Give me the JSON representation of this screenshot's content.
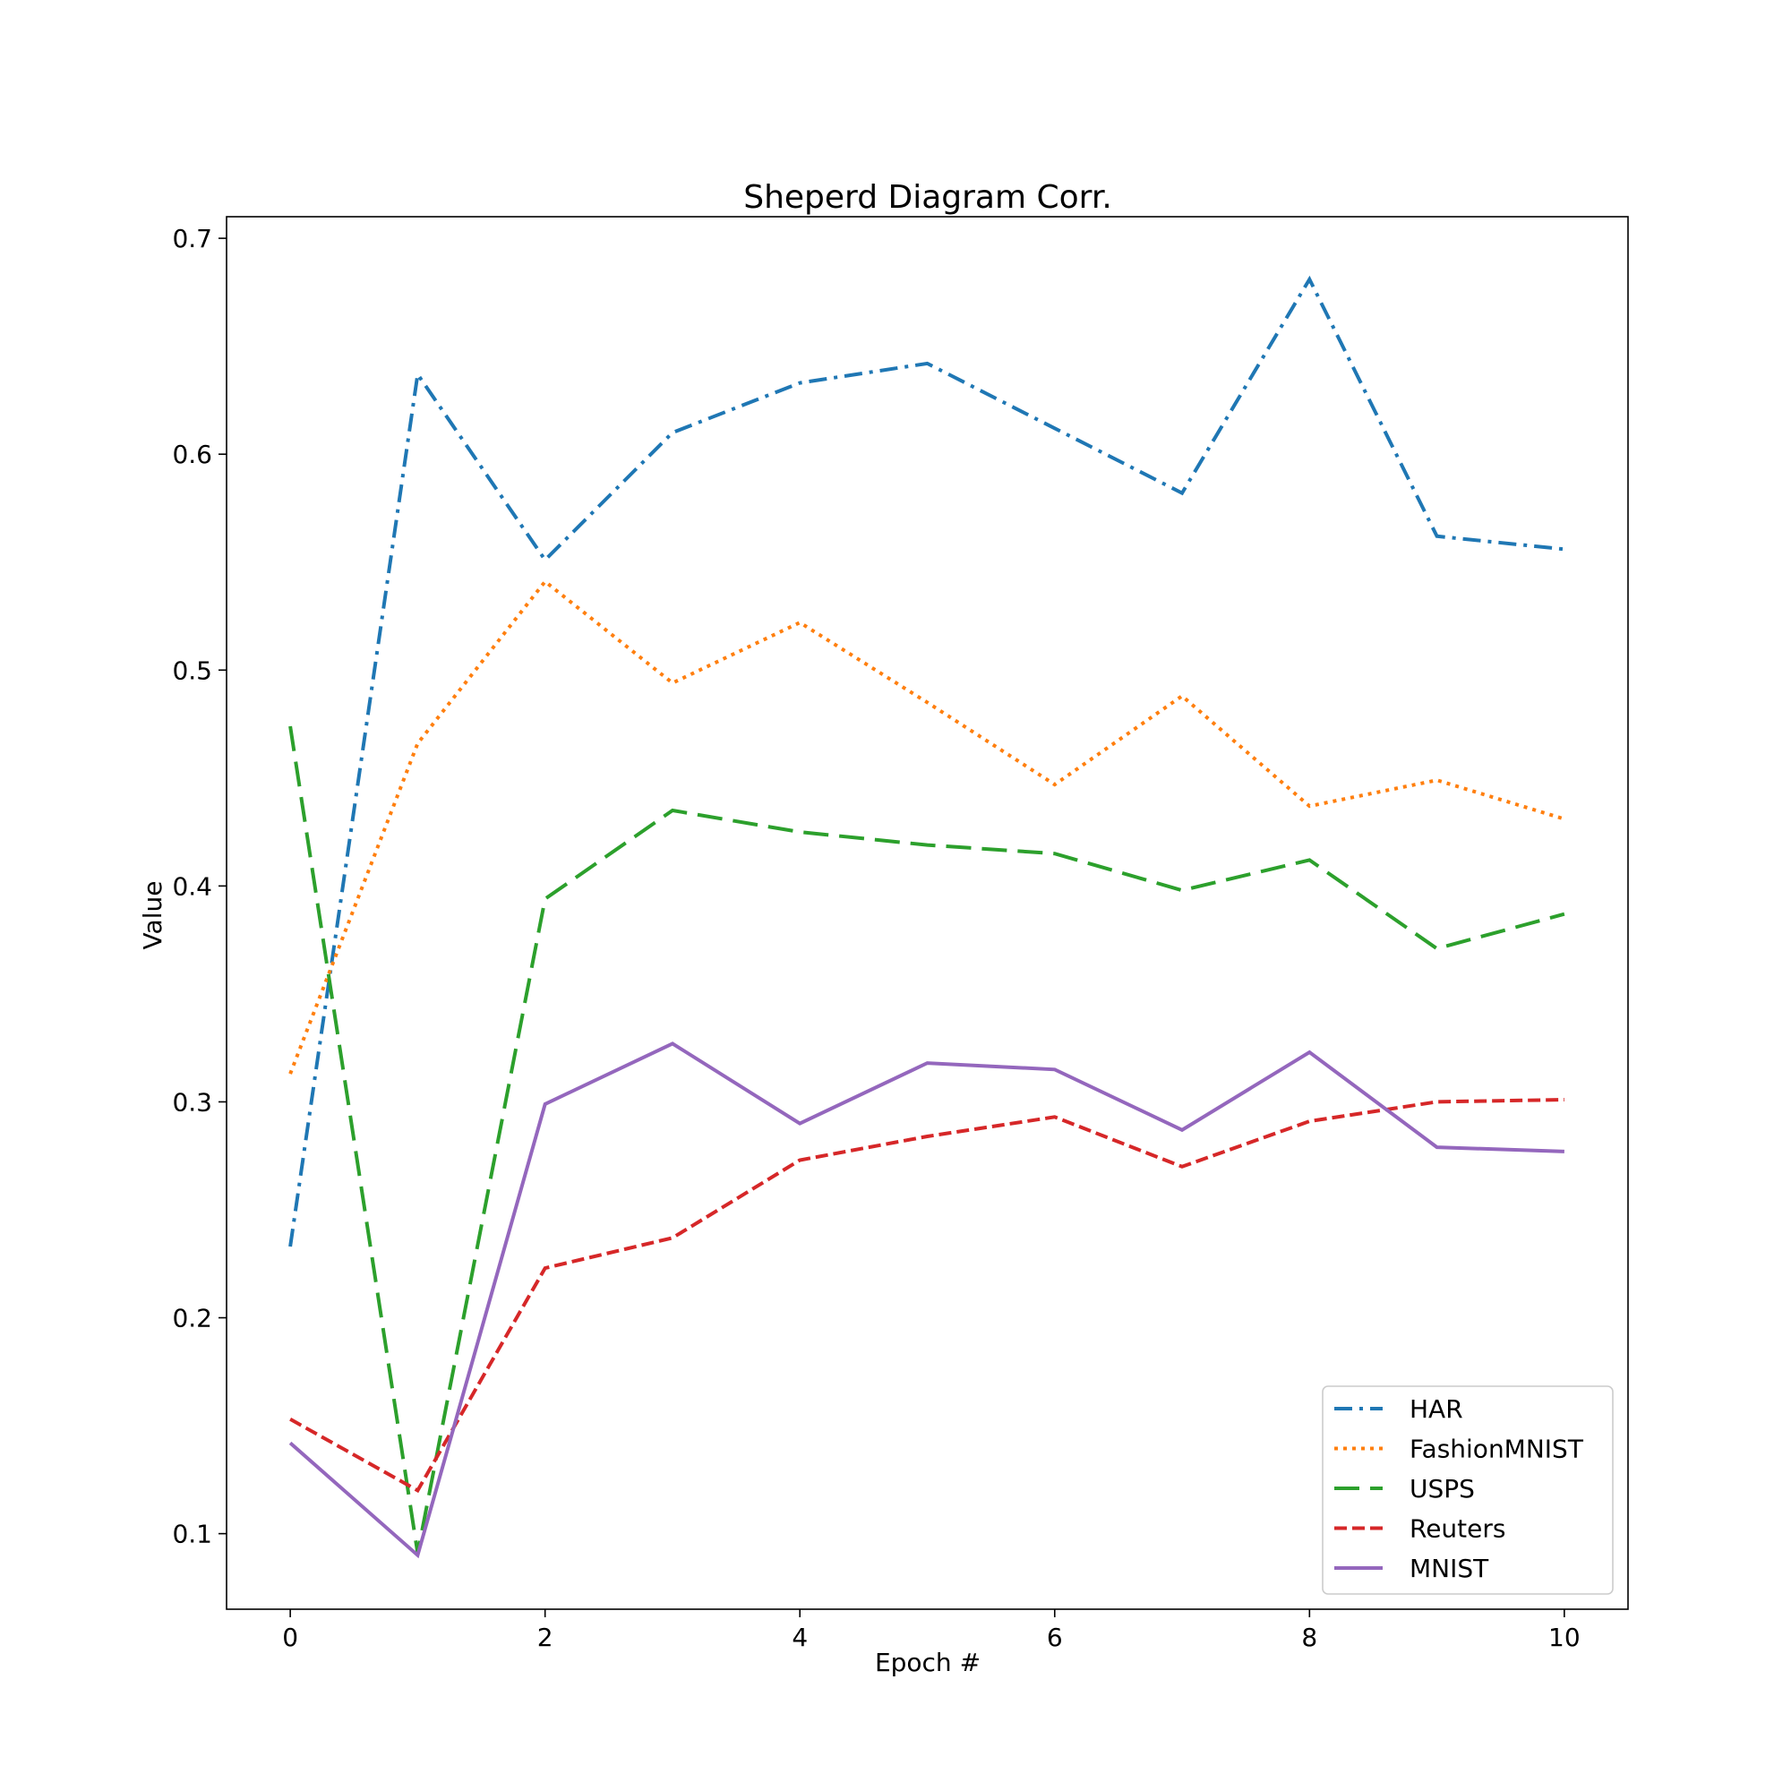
{
  "chart_data": {
    "type": "line",
    "title": "Sheperd Diagram Corr.",
    "xlabel": "Epoch #",
    "ylabel": "Value",
    "xlim": [
      -0.5,
      10.5
    ],
    "ylim": [
      0.065,
      0.71
    ],
    "xticks": [
      0,
      2,
      4,
      6,
      8,
      10
    ],
    "yticks": [
      0.1,
      0.2,
      0.3,
      0.4,
      0.5,
      0.6,
      0.7
    ],
    "grid": false,
    "legend_position": "lower-right",
    "x": [
      0,
      1,
      2,
      3,
      4,
      5,
      6,
      7,
      8,
      9,
      10
    ],
    "series": [
      {
        "name": "HAR",
        "color": "#1f77b4",
        "style": "dashdot",
        "values": [
          0.233,
          0.637,
          0.551,
          0.61,
          0.633,
          0.642,
          0.612,
          0.582,
          0.681,
          0.562,
          0.556
        ]
      },
      {
        "name": "FashionMNIST",
        "color": "#ff7f0e",
        "style": "dotted",
        "values": [
          0.313,
          0.466,
          0.541,
          0.494,
          0.522,
          0.485,
          0.447,
          0.488,
          0.437,
          0.449,
          0.431
        ]
      },
      {
        "name": "USPS",
        "color": "#2ca02c",
        "style": "longdash",
        "values": [
          0.474,
          0.091,
          0.394,
          0.435,
          0.425,
          0.419,
          0.415,
          0.398,
          0.412,
          0.371,
          0.387
        ]
      },
      {
        "name": "Reuters",
        "color": "#d62728",
        "style": "dashed",
        "values": [
          0.153,
          0.12,
          0.223,
          0.237,
          0.273,
          0.284,
          0.293,
          0.27,
          0.291,
          0.3,
          0.301
        ]
      },
      {
        "name": "MNIST",
        "color": "#9467bd",
        "style": "solid",
        "values": [
          0.142,
          0.09,
          0.299,
          0.327,
          0.29,
          0.318,
          0.315,
          0.287,
          0.323,
          0.279,
          0.277
        ]
      }
    ]
  }
}
